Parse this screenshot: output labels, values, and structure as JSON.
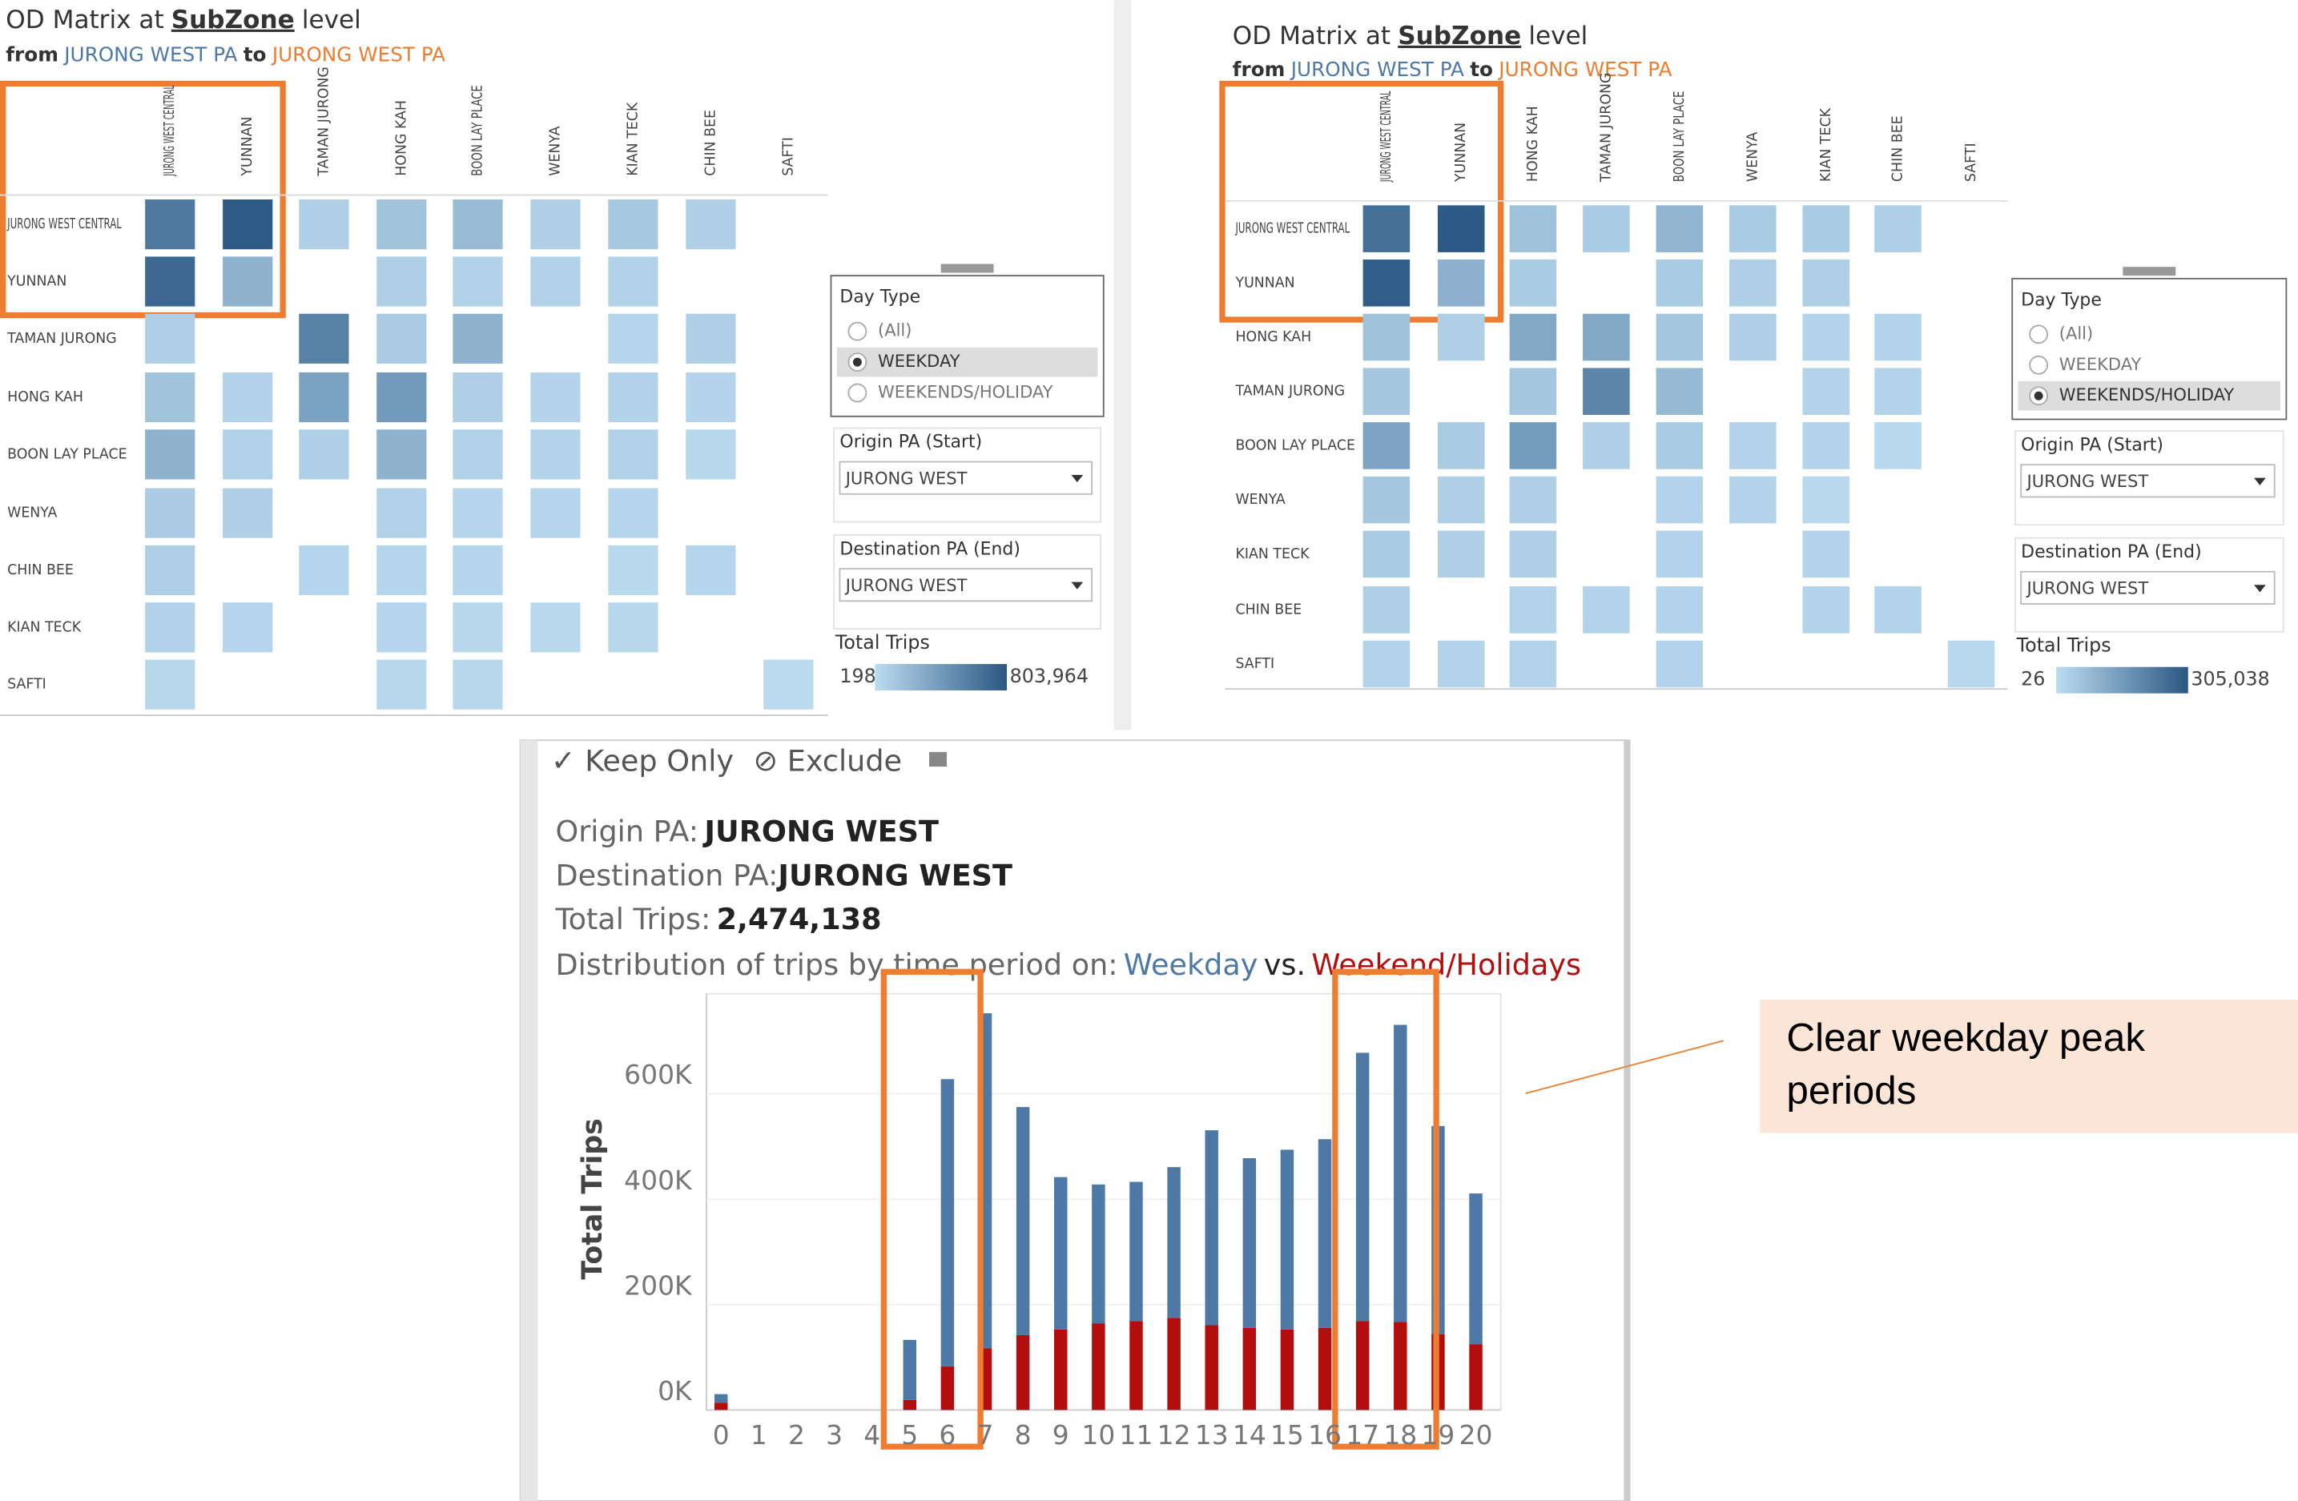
{
  "matrices": [
    {
      "title": "OD Matrix at",
      "title_link": "SubZone",
      "title_end": "level",
      "from": "from",
      "origin": "JURONG WEST  PA",
      "to": "to",
      "destination": "JURONG WEST PA",
      "columns": [
        "JURONG WEST CENTRAL",
        "YUNNAN",
        "TAMAN JURONG",
        "HONG KAH",
        "BOON LAY PLACE",
        "WENYA",
        "KIAN TECK",
        "CHIN BEE",
        "SAFTI"
      ],
      "rows": [
        "JURONG WEST CENTRAL",
        "YUNNAN",
        "TAMAN JURONG",
        "HONG KAH",
        "BOON LAY PLACE",
        "WENYA",
        "CHIN BEE",
        "KIAN TECK",
        "SAFTI"
      ],
      "values": [
        [
          600000,
          780000,
          80000,
          150000,
          200000,
          80000,
          120000,
          80000,
          null
        ],
        [
          700000,
          250000,
          null,
          80000,
          60000,
          60000,
          60000,
          null,
          null
        ],
        [
          80000,
          null,
          550000,
          100000,
          250000,
          null,
          40000,
          80000,
          null
        ],
        [
          150000,
          60000,
          350000,
          400000,
          80000,
          50000,
          60000,
          50000,
          null
        ],
        [
          250000,
          60000,
          80000,
          250000,
          60000,
          50000,
          60000,
          30000,
          null
        ],
        [
          100000,
          80000,
          null,
          60000,
          40000,
          40000,
          40000,
          null,
          null
        ],
        [
          80000,
          null,
          40000,
          40000,
          40000,
          null,
          20000,
          40000,
          null
        ],
        [
          60000,
          40000,
          null,
          40000,
          30000,
          20000,
          30000,
          null,
          null
        ],
        [
          30000,
          null,
          null,
          30000,
          30000,
          null,
          null,
          null,
          10000
        ]
      ],
      "colors": [
        "#bcdcf1",
        "#2a5783"
      ],
      "day_type_label": "Day Type",
      "day_type_options": [
        "(All)",
        "WEEKDAY",
        "WEEKENDS/HOLIDAY"
      ],
      "day_type_selected": 1,
      "origin_label": "Origin PA (Start)",
      "origin_value": "JURONG WEST",
      "destination_label": "Destination PA (End)",
      "destination_value": "JURONG WEST",
      "legend_title": "Total Trips",
      "legend_min": 198,
      "legend_max": {
        "value": 803964,
        "label": "803,964"
      }
    },
    {
      "title": "OD Matrix at",
      "title_link": "SubZone",
      "title_end": "level",
      "from": "from",
      "origin": "JURONG WEST  PA",
      "to": "to",
      "destination": "JURONG WEST PA",
      "columns": [
        "JURONG WEST CENTRAL",
        "YUNNAN",
        "HONG KAH",
        "TAMAN JURONG",
        "BOON LAY PLACE",
        "WENYA",
        "KIAN TECK",
        "CHIN BEE",
        "SAFTI"
      ],
      "rows": [
        "JURONG WEST CENTRAL",
        "YUNNAN",
        "HONG KAH",
        "TAMAN JURONG",
        "BOON LAY PLACE",
        "WENYA",
        "KIAN TECK",
        "CHIN BEE",
        "SAFTI"
      ],
      "values": [
        [
          250000,
          300000,
          60000,
          40000,
          90000,
          40000,
          40000,
          30000,
          null
        ],
        [
          290000,
          100000,
          40000,
          null,
          40000,
          30000,
          30000,
          null,
          null
        ],
        [
          60000,
          30000,
          120000,
          120000,
          50000,
          30000,
          20000,
          20000,
          null
        ],
        [
          50000,
          null,
          50000,
          200000,
          80000,
          null,
          20000,
          20000,
          null
        ],
        [
          130000,
          40000,
          150000,
          30000,
          40000,
          20000,
          20000,
          10000,
          null
        ],
        [
          50000,
          30000,
          30000,
          null,
          20000,
          20000,
          10000,
          null,
          null
        ],
        [
          40000,
          30000,
          30000,
          null,
          20000,
          null,
          20000,
          null,
          null
        ],
        [
          30000,
          null,
          20000,
          20000,
          20000,
          null,
          20000,
          20000,
          null
        ],
        [
          20000,
          20000,
          20000,
          null,
          20000,
          null,
          null,
          null,
          10000
        ]
      ],
      "colors": [
        "#bcdcf1",
        "#2a5783"
      ],
      "day_type_label": "Day Type",
      "day_type_options": [
        "(All)",
        "WEEKDAY",
        "WEEKENDS/HOLIDAY"
      ],
      "day_type_selected": 2,
      "origin_label": "Origin PA (Start)",
      "origin_value": "JURONG WEST",
      "destination_label": "Destination PA (End)",
      "destination_value": "JURONG WEST",
      "legend_title": "Total Trips",
      "legend_min": 26,
      "legend_max": {
        "value": 305038,
        "label": "305,038"
      }
    }
  ],
  "chart_data": {
    "type": "bar",
    "stacked": true,
    "toolbar": [
      "Keep Only",
      "Exclude"
    ],
    "header": [
      {
        "label": "Origin PA:",
        "value": "JURONG WEST"
      },
      {
        "label": "Destination PA:",
        "value": "JURONG WEST"
      },
      {
        "label": "Total Trips:",
        "value": "2,474,138"
      }
    ],
    "subtitle": "Distribution of trips by time period on:",
    "subtitle_vs": "vs.",
    "y_label": "Total Trips",
    "categories": [
      "0",
      "1",
      "2",
      "3",
      "4",
      "5",
      "6",
      "7",
      "8",
      "9",
      "10",
      "11",
      "12",
      "13",
      "14",
      "15",
      "16",
      "17",
      "18",
      "19",
      "20"
    ],
    "series": [
      {
        "name": "Weekend/Holidays",
        "color": "#b40d0d",
        "values": [
          14000,
          null,
          null,
          null,
          null,
          19000,
          83000,
          117000,
          142000,
          153000,
          164000,
          169000,
          175000,
          161000,
          156000,
          153000,
          156000,
          169000,
          167000,
          144000,
          125000
        ]
      },
      {
        "name": "Weekday",
        "color": "#4e79a7",
        "values": [
          16000,
          null,
          null,
          null,
          null,
          114000,
          545000,
          636000,
          433000,
          289000,
          264000,
          264000,
          286000,
          370000,
          322000,
          341000,
          358000,
          509000,
          564000,
          395000,
          286000
        ]
      }
    ],
    "ylim": [
      0,
      790000
    ],
    "yticks": [
      {
        "value": 0,
        "label": "0K"
      },
      {
        "value": 200000,
        "label": "200K"
      },
      {
        "value": 400000,
        "label": "400K"
      },
      {
        "value": 600000,
        "label": "600K"
      }
    ],
    "grid": true,
    "annotation": "Clear weekday peak periods"
  }
}
